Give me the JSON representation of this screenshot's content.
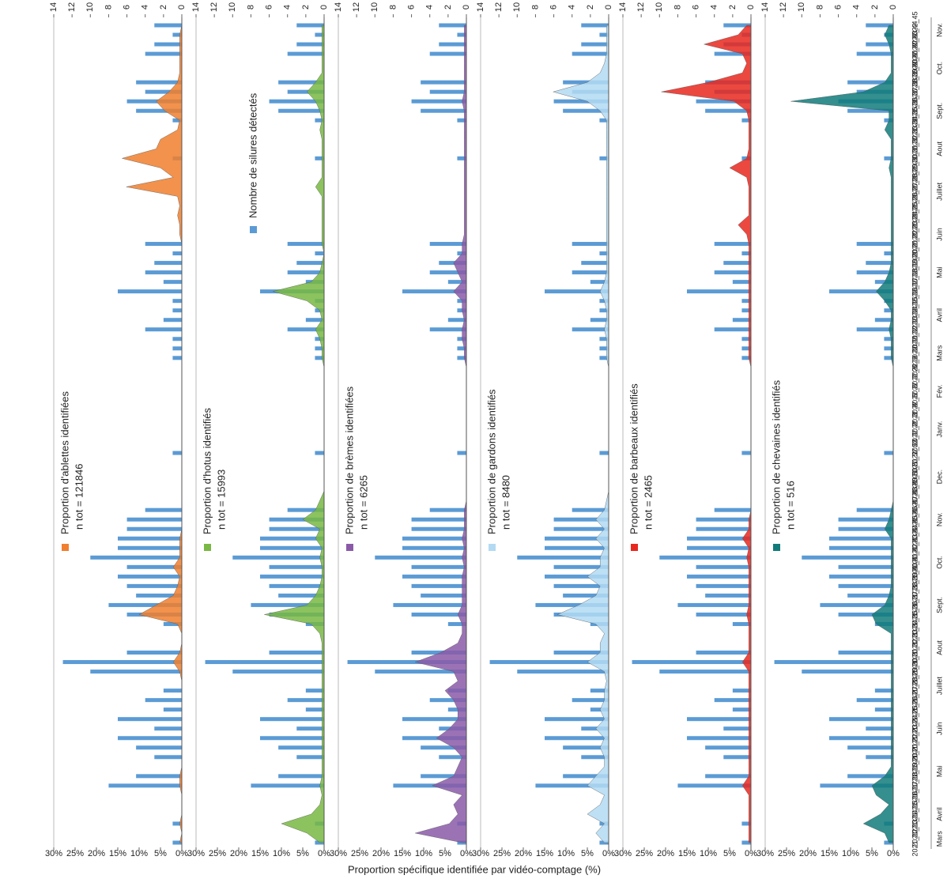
{
  "chart_data": {
    "type": "area",
    "y_title": "Proportion spécifique identifiée par vidéo-comptage (%)",
    "categories": [
      "2021_12",
      "2021_13",
      "2021_14",
      "2021_15",
      "2021_16",
      "2021_17",
      "2021_18",
      "2021_19",
      "2021_20",
      "2021_21",
      "2021_22",
      "2021_23",
      "2021_24",
      "2021_25",
      "2021_26",
      "2021_27",
      "2021_28",
      "2021_29",
      "2021_30",
      "2021_31",
      "2021_32",
      "2021_33",
      "2021_34",
      "2021_35",
      "2021_36",
      "2021_37",
      "2021_38",
      "2021_39",
      "2021_40",
      "2021_41",
      "2021_42",
      "2021_43",
      "2021_44",
      "2021_45",
      "2021_46",
      "2021_47",
      "2021_48",
      "2021_49",
      "2021_50",
      "2021_51",
      "2021_52",
      "2021_53",
      "2022_1",
      "2022_2",
      "2022_3",
      "2022_4",
      "2022_5",
      "2022_6",
      "2022_7",
      "2022_8",
      "2022_9",
      "2022_10",
      "2022_11",
      "2022_12",
      "2022_13",
      "2022_14",
      "2022_15",
      "2022_16",
      "2022_17",
      "2022_18",
      "2022_19",
      "2022_20",
      "2022_21",
      "2022_22",
      "2022_23",
      "2022_24",
      "2022_25",
      "2022_26",
      "2022_27",
      "2022_28",
      "2022_29",
      "2022_30",
      "2022_31",
      "2022_32",
      "2022_33",
      "2022_34",
      "2022_35",
      "2022_36",
      "2022_37",
      "2022_38",
      "2022_39",
      "2022_40",
      "2022_41",
      "2022_42",
      "2022_43",
      "2022_44",
      "2022_45"
    ],
    "months": [
      "Mars",
      "Avril",
      "Mai",
      "Juin",
      "Juillet",
      "Aout",
      "Sept.",
      "Oct.",
      "Nov.",
      "Dec.",
      "Janv.",
      "Fév.",
      "Mars",
      "Avril",
      "Mai",
      "Juin",
      "Juillet",
      "Aout",
      "Sept.",
      "Oct.",
      "Nov."
    ],
    "bar_series": {
      "name": "Nombre de silures détectés",
      "color": "#5b9bd5",
      "axis": "y2",
      "values": [
        1,
        0,
        1,
        0,
        0,
        0,
        8,
        5,
        0,
        3,
        5,
        7,
        3,
        7,
        2,
        4,
        2,
        0,
        10,
        13,
        6,
        0,
        0,
        2,
        6,
        8,
        5,
        6,
        7,
        6,
        10,
        7,
        7,
        6,
        6,
        4,
        0,
        0,
        0,
        0,
        0,
        1,
        0,
        0,
        0,
        0,
        0,
        0,
        0,
        0,
        0,
        1,
        1,
        1,
        4,
        2,
        1,
        1,
        7,
        2,
        4,
        3,
        1,
        4,
        0,
        0,
        0,
        0,
        0,
        0,
        0,
        0,
        1,
        0,
        0,
        0,
        1,
        5,
        6,
        4,
        5,
        0,
        0,
        4,
        3,
        1,
        3
      ]
    },
    "series": [
      {
        "name": "Proportion d'ablettes identifiées",
        "n_label": "n tot = 121846",
        "color": "#f07f2e",
        "values": [
          0.5,
          0,
          0.5,
          0,
          0,
          0,
          0.5,
          0.5,
          0,
          0,
          0,
          0,
          0,
          0,
          0,
          0,
          0,
          0,
          0.5,
          2,
          0.5,
          0,
          0,
          1,
          10,
          6,
          2,
          1,
          0.5,
          2,
          0.5,
          0.5,
          0.5,
          0,
          0,
          0,
          0,
          0,
          0,
          0,
          0,
          0,
          0,
          0,
          0,
          0,
          0,
          0,
          0,
          0,
          0,
          0,
          0,
          0,
          0,
          0,
          0,
          0,
          0,
          0,
          0,
          0,
          0,
          0,
          0.5,
          0.5,
          1,
          0.5,
          1,
          13,
          2,
          5,
          14,
          6,
          5,
          1,
          0.5,
          4,
          6,
          3,
          1,
          0.5,
          0.5,
          0.5,
          0.5,
          0.5,
          0
        ]
      },
      {
        "name": "Proportion d'hotus identifiés",
        "n_label": "n tot = 15993",
        "color": "#78b843",
        "values": [
          1,
          4,
          10,
          3,
          1,
          0.5,
          1,
          0.5,
          0.5,
          0.5,
          0.5,
          0.5,
          0.5,
          0.5,
          0.5,
          0.5,
          0.5,
          0.5,
          0.5,
          0.5,
          0.5,
          0.5,
          1,
          3,
          14,
          4,
          2,
          1,
          0.5,
          0.5,
          1,
          0.5,
          2,
          1,
          5,
          2,
          1,
          0,
          0,
          0,
          0,
          0,
          0,
          0,
          0,
          0,
          0,
          0,
          0,
          0,
          0,
          0.5,
          0.5,
          1,
          2,
          0.5,
          1,
          4,
          12,
          3,
          1,
          0.5,
          0,
          0.5,
          0.5,
          0.5,
          0.5,
          0.5,
          0.5,
          2,
          0.5,
          0.5,
          0.5,
          0.5,
          0.5,
          1,
          0.5,
          1,
          2,
          4,
          2,
          0.5,
          0.5,
          0.5,
          0.5,
          0.5,
          0.5
        ]
      },
      {
        "name": "Proportion de brèmes identifiées",
        "n_label": "n tot = 6265",
        "color": "#8a5aa8",
        "values": [
          1,
          12,
          4,
          2,
          3,
          1,
          8,
          3,
          2,
          1,
          3,
          7,
          4,
          2,
          2,
          3,
          5,
          2,
          3,
          12,
          6,
          2,
          1,
          1,
          2,
          1,
          1,
          1,
          1,
          0.5,
          1,
          0.5,
          1,
          0.5,
          0.5,
          0.5,
          0,
          0,
          0,
          0,
          0,
          0,
          0,
          0,
          0,
          0,
          0,
          0,
          0,
          0,
          0,
          0.5,
          0.5,
          1,
          1,
          0.5,
          1,
          1,
          3,
          1,
          2,
          3,
          1,
          1,
          0.5,
          0.5,
          0.5,
          0.5,
          0.5,
          0.5,
          0.5,
          0.5,
          0.5,
          0.5,
          0.5,
          0.5,
          0.5,
          0.5,
          1,
          0.5,
          0.5,
          0.5,
          0.5,
          0.5,
          0.5,
          0.5,
          0.5
        ]
      },
      {
        "name": "Proportion de gardons identifiés",
        "n_label": "n tot = 8480",
        "color": "#b3daf3",
        "values": [
          1,
          3,
          1,
          5,
          2,
          1,
          5,
          3,
          1,
          1,
          2,
          1,
          3,
          1,
          2,
          1,
          1,
          0.5,
          1,
          5,
          2,
          2,
          1,
          3,
          12,
          7,
          3,
          2,
          5,
          2,
          2,
          1,
          3,
          1,
          3,
          1,
          0.5,
          0,
          0,
          0,
          0,
          0,
          0,
          0,
          0,
          0,
          0,
          0,
          0,
          0,
          0,
          0.5,
          0.5,
          0.5,
          1,
          0.5,
          0.5,
          1,
          2,
          1,
          0.5,
          0.5,
          0.5,
          0.5,
          0.5,
          0.5,
          0.5,
          0.5,
          0.5,
          0.5,
          0.5,
          0.5,
          0.5,
          0.5,
          0.5,
          0.5,
          0.5,
          2,
          5,
          13,
          5,
          2,
          1,
          0.5,
          0.5,
          0.5,
          0.5
        ]
      },
      {
        "name": "Proportion de barbeaux identifiés",
        "n_label": "n tot = 2465",
        "color": "#e8281e",
        "values": [
          0.5,
          0.5,
          0.5,
          0.5,
          0.5,
          0.5,
          2,
          0.5,
          0.5,
          0.5,
          0.5,
          0.5,
          0.5,
          0.5,
          0.5,
          0.5,
          0.5,
          0.5,
          0.5,
          2,
          0.5,
          0.5,
          0.5,
          0.5,
          1,
          0.5,
          0.5,
          0.5,
          0.5,
          0.5,
          1,
          0.5,
          2,
          0.5,
          0.5,
          0,
          0,
          0,
          0,
          0,
          0,
          0,
          0,
          0,
          0,
          0,
          0,
          0,
          0,
          0,
          0,
          0.5,
          0.5,
          0.5,
          0.5,
          0.5,
          0.5,
          0.5,
          0.5,
          0.5,
          0.5,
          0.5,
          0.5,
          0.5,
          1,
          3,
          0.5,
          0.5,
          0.5,
          0.5,
          1,
          5,
          1,
          0.5,
          0.5,
          0.5,
          0.5,
          1,
          4,
          21,
          10,
          2,
          1,
          2,
          11,
          3,
          1
        ]
      },
      {
        "name": "Proportion de chevaines identifiés",
        "n_label": "n tot = 516",
        "color": "#117b7a",
        "values": [
          1,
          2,
          7,
          3,
          1,
          4,
          5,
          2,
          0.5,
          0.5,
          0.5,
          0.5,
          0.5,
          0.5,
          0.5,
          0.5,
          0.5,
          0.5,
          0.5,
          0.5,
          0.5,
          0.5,
          0.5,
          4,
          5,
          2,
          1,
          0.5,
          0.5,
          0.5,
          0.5,
          0.5,
          0.5,
          2,
          1,
          0.5,
          0,
          0,
          0,
          0,
          0,
          0,
          0,
          0,
          0,
          0,
          0,
          0,
          0,
          0,
          0,
          0.5,
          0.5,
          0.5,
          1,
          0.5,
          0.5,
          2,
          4,
          2,
          1,
          0.5,
          0.5,
          0.5,
          0.5,
          0.5,
          0.5,
          0.5,
          0.5,
          0.5,
          0.5,
          1,
          0.5,
          0.5,
          0.5,
          2,
          1,
          1,
          24,
          7,
          2,
          0.5,
          0.5,
          0.5,
          1,
          2,
          1
        ]
      }
    ],
    "ylim": [
      0,
      30
    ],
    "yticks": [
      {
        "value": 0,
        "label": "0%"
      },
      {
        "value": 5,
        "label": "5%"
      },
      {
        "value": 10,
        "label": "10%"
      },
      {
        "value": 15,
        "label": "15%"
      },
      {
        "value": 20,
        "label": "20%"
      },
      {
        "value": 25,
        "label": "25%"
      },
      {
        "value": 30,
        "label": "30%"
      }
    ],
    "y2lim": [
      0,
      14
    ],
    "y2ticks": [
      0,
      2,
      4,
      6,
      8,
      10,
      12,
      14
    ]
  }
}
